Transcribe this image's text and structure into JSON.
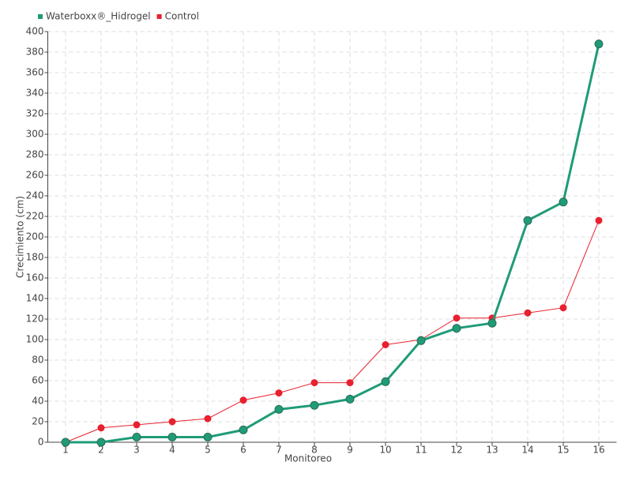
{
  "chart_data": {
    "type": "line",
    "x_label": "Monitoreo",
    "y_label": "Crecimiento (cm)",
    "categories": [
      "1",
      "2",
      "3",
      "4",
      "5",
      "6",
      "7",
      "8",
      "9",
      "10",
      "11",
      "12",
      "13",
      "14",
      "15",
      "16"
    ],
    "series": [
      {
        "name": "Waterboxx®_Hidrogel",
        "color": "#1f9b78",
        "values": [
          0,
          0,
          5,
          5,
          5,
          12,
          32,
          36,
          42,
          59,
          99,
          111,
          116,
          216,
          234,
          388
        ]
      },
      {
        "name": "Control",
        "color": "#e8202f",
        "values": [
          0,
          14,
          17,
          20,
          23,
          41,
          48,
          58,
          58,
          95,
          100,
          121,
          121,
          126,
          131,
          216
        ]
      }
    ],
    "ylim": [
      0,
      400
    ],
    "yticks": [
      0,
      20,
      40,
      60,
      80,
      100,
      120,
      140,
      160,
      180,
      200,
      220,
      240,
      260,
      280,
      300,
      320,
      340,
      360,
      380,
      400
    ],
    "grid": true,
    "legend": "top-left"
  }
}
